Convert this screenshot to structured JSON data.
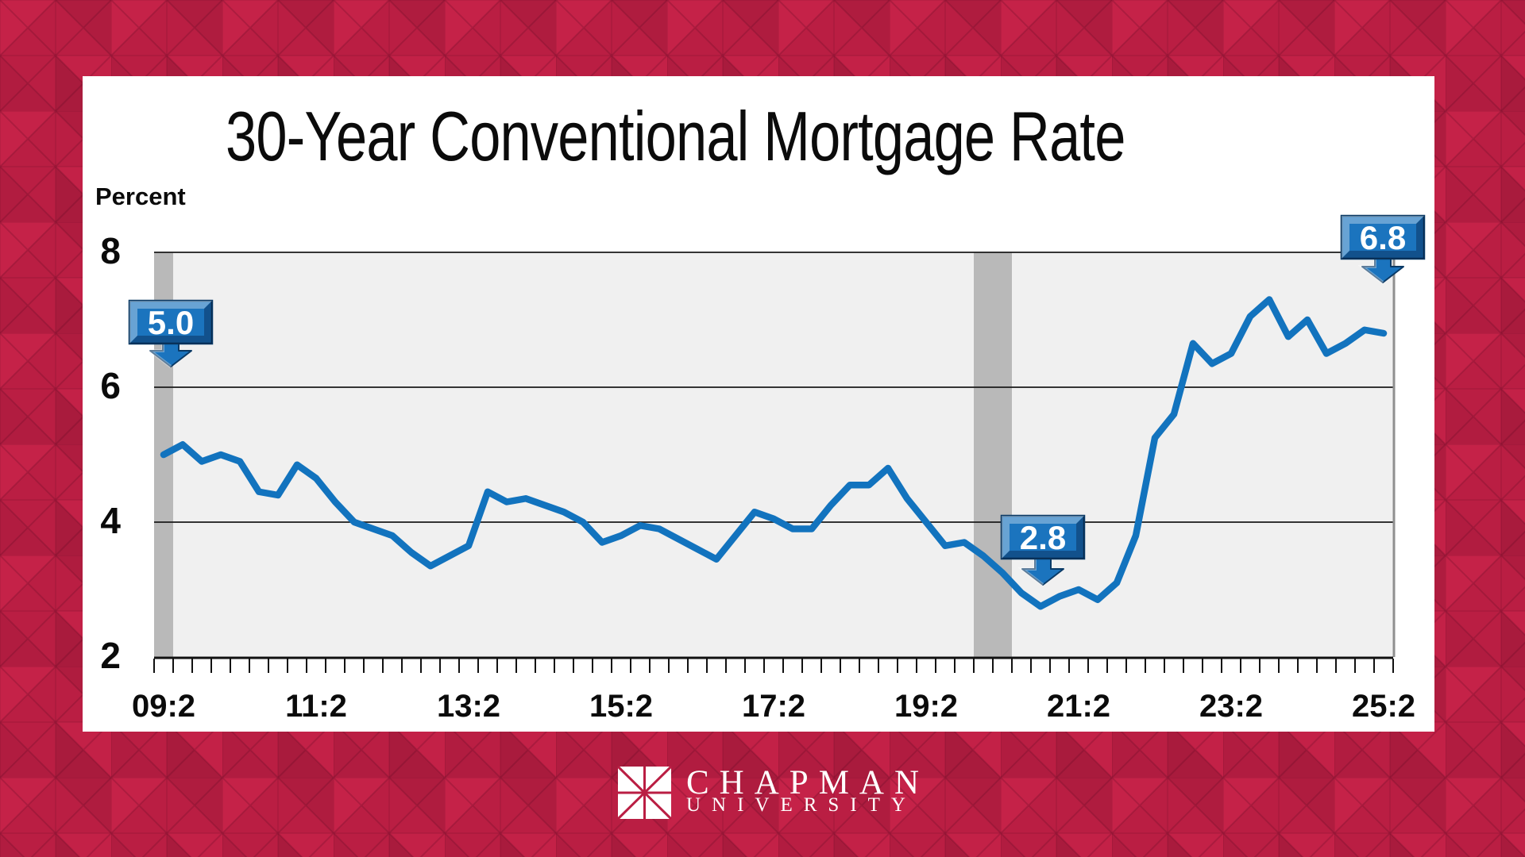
{
  "title": "30-Year Conventional Mortgage Rate",
  "chart_data": {
    "type": "line",
    "title": "30-Year Conventional Mortgage Rate",
    "y_axis_title": "Percent",
    "ylim": [
      2,
      8
    ],
    "yticks": [
      8,
      6,
      4,
      2
    ],
    "grid": "horizontal",
    "legend": "none",
    "x_tick_labels": [
      "09:2",
      "11:2",
      "13:2",
      "15:2",
      "17:2",
      "19:2",
      "21:2",
      "23:2",
      "25:2"
    ],
    "quarters": [
      "09:2",
      "09:3",
      "09:4",
      "10:1",
      "10:2",
      "10:3",
      "10:4",
      "11:1",
      "11:2",
      "11:3",
      "11:4",
      "12:1",
      "12:2",
      "12:3",
      "12:4",
      "13:1",
      "13:2",
      "13:3",
      "13:4",
      "14:1",
      "14:2",
      "14:3",
      "14:4",
      "15:1",
      "15:2",
      "15:3",
      "15:4",
      "16:1",
      "16:2",
      "16:3",
      "16:4",
      "17:1",
      "17:2",
      "17:3",
      "17:4",
      "18:1",
      "18:2",
      "18:3",
      "18:4",
      "19:1",
      "19:2",
      "19:3",
      "19:4",
      "20:1",
      "20:2",
      "20:3",
      "20:4",
      "21:1",
      "21:2",
      "21:3",
      "21:4",
      "22:1",
      "22:2",
      "22:3",
      "22:4",
      "23:1",
      "23:2",
      "23:3",
      "23:4",
      "24:1",
      "24:2",
      "24:3",
      "24:4",
      "25:1",
      "25:2"
    ],
    "values": [
      5.0,
      5.15,
      4.9,
      5.0,
      4.9,
      4.45,
      4.4,
      4.85,
      4.65,
      4.3,
      4.0,
      3.9,
      3.8,
      3.55,
      3.35,
      3.5,
      3.65,
      4.45,
      4.3,
      4.35,
      4.25,
      4.15,
      4.0,
      3.7,
      3.8,
      3.95,
      3.9,
      3.75,
      3.6,
      3.45,
      3.8,
      4.15,
      4.05,
      3.9,
      3.9,
      4.25,
      4.55,
      4.55,
      4.8,
      4.35,
      4.0,
      3.65,
      3.7,
      3.5,
      3.25,
      2.95,
      2.75,
      2.9,
      3.0,
      2.85,
      3.1,
      3.8,
      5.25,
      5.6,
      6.65,
      6.35,
      6.5,
      7.05,
      7.3,
      6.75,
      7.0,
      6.5,
      6.65,
      6.85,
      6.8
    ],
    "recession_bands": [
      {
        "from_quarter": "09:2",
        "to_quarter": "09:2",
        "i0": -0.5,
        "i1": 0.5
      },
      {
        "from_quarter": "20:1",
        "to_quarter": "20:2",
        "i0": 42.5,
        "i1": 44.5
      }
    ],
    "annotations": [
      {
        "label": "5.0",
        "points_to": "09:2"
      },
      {
        "label": "2.8",
        "points_to": "20:4"
      },
      {
        "label": "6.8",
        "points_to": "25:2"
      }
    ]
  },
  "colors": {
    "background_red": "#BA1E43",
    "pattern_red_light": "#C52248",
    "pattern_red_dark": "#AC1B3E",
    "panel_white": "#FFFFFF",
    "plot_background": "#F0F0F0",
    "recession_band_gray": "#B9B9B9",
    "line_blue": "#1273BE",
    "callout_blue": "#1B74BE",
    "grid_black": "#1A1A1A"
  },
  "footer": {
    "brand_line1": "CHAPMAN",
    "brand_line2": "UNIVERSITY"
  }
}
